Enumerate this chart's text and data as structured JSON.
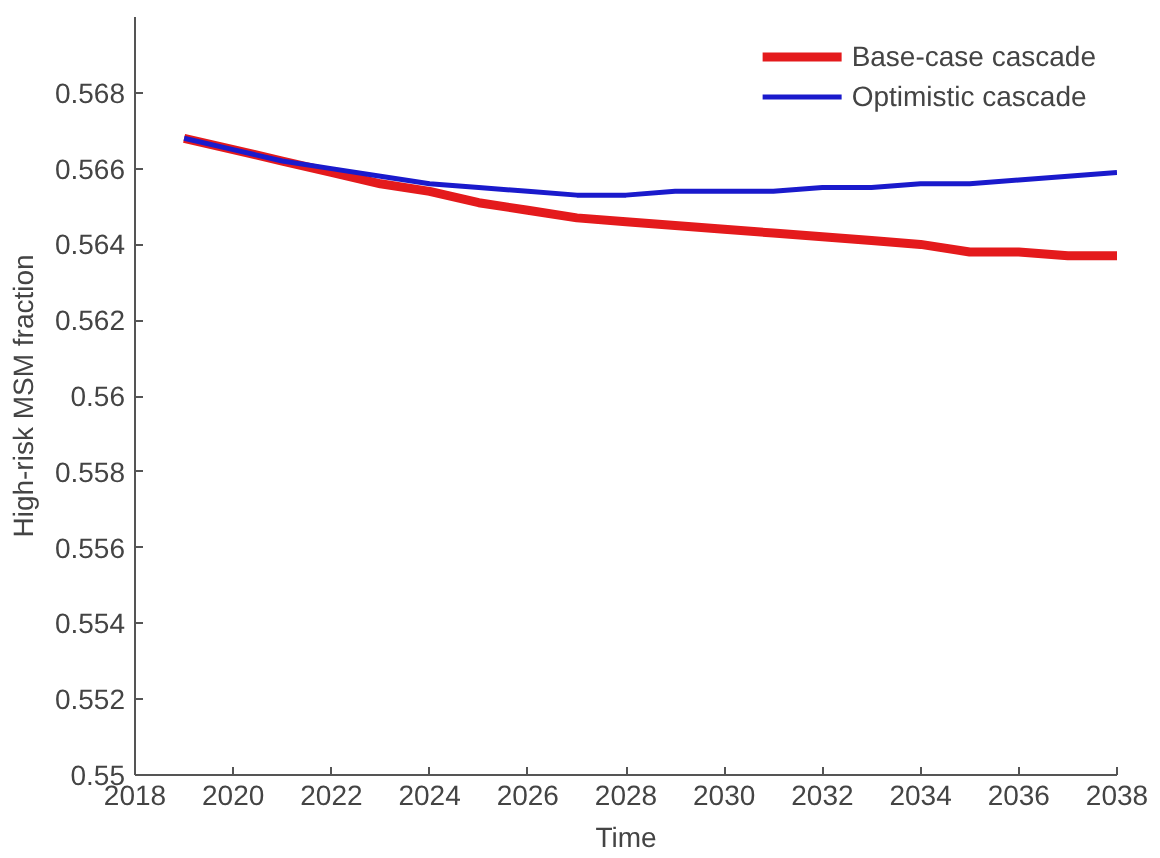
{
  "chart_data": {
    "type": "line",
    "xlabel": "Time",
    "ylabel": "High-risk MSM fraction",
    "x": [
      2019,
      2020,
      2021,
      2022,
      2023,
      2024,
      2025,
      2026,
      2027,
      2028,
      2029,
      2030,
      2031,
      2032,
      2033,
      2034,
      2035,
      2036,
      2037,
      2038
    ],
    "series": [
      {
        "name": "Base-case cascade",
        "color": "#e41a1c",
        "values": [
          0.5668,
          0.5665,
          0.5662,
          0.5659,
          0.5656,
          0.5654,
          0.5651,
          0.5649,
          0.5647,
          0.5646,
          0.5645,
          0.5644,
          0.5643,
          0.5642,
          0.5641,
          0.564,
          0.5638,
          0.5638,
          0.5637,
          0.5637
        ]
      },
      {
        "name": "Optimistic cascade",
        "color": "#1a1acc",
        "values": [
          0.5668,
          0.5665,
          0.5662,
          0.566,
          0.5658,
          0.5656,
          0.5655,
          0.5654,
          0.5653,
          0.5653,
          0.5654,
          0.5654,
          0.5654,
          0.5655,
          0.5655,
          0.5656,
          0.5656,
          0.5657,
          0.5658,
          0.5659
        ]
      }
    ],
    "xlim": [
      2018,
      2038
    ],
    "ylim": [
      0.55,
      0.57
    ],
    "xticks": [
      2018,
      2020,
      2022,
      2024,
      2026,
      2028,
      2030,
      2032,
      2034,
      2036,
      2038
    ],
    "yticks": [
      0.55,
      0.552,
      0.554,
      0.556,
      0.558,
      0.56,
      0.562,
      0.564,
      0.566,
      0.568
    ],
    "grid": false,
    "legend": "top right",
    "line_style": "solid",
    "marker": "none"
  }
}
